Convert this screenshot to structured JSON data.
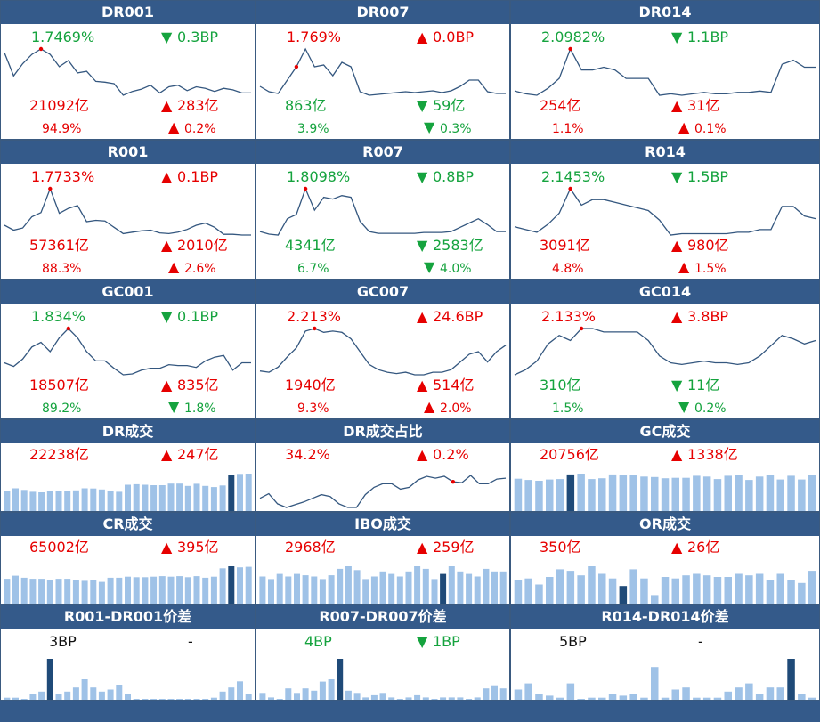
{
  "colors": {
    "header_bg": "#345a8a",
    "up": "#e60000",
    "down": "#15a33e",
    "bar": "#9fc2e7",
    "bar_highlight": "#1f4a78",
    "line": "#34577f",
    "marker": "#e60000"
  },
  "rows": [
    {
      "type": "rate",
      "panels": [
        {
          "title": "DR001",
          "rate": "1.7469%",
          "rate_color": "green",
          "change": {
            "dir": "down",
            "value": "0.3BP"
          },
          "volume": "21092亿",
          "vol_color": "red",
          "vol_change": {
            "dir": "up",
            "value": "283亿"
          },
          "share": "94.9%",
          "share_color": "red",
          "share_change": {
            "dir": "up",
            "value": "0.2%"
          },
          "chart_data": {
            "type": "line",
            "values": [
              2.0,
              1.7,
              1.86,
              1.98,
              2.05,
              1.98,
              1.82,
              1.9,
              1.74,
              1.76,
              1.63,
              1.62,
              1.6,
              1.45,
              1.5,
              1.53,
              1.58,
              1.48,
              1.56,
              1.58,
              1.51,
              1.56,
              1.54,
              1.5,
              1.54,
              1.52,
              1.48,
              1.48
            ],
            "highlight_index": 4
          }
        },
        {
          "title": "DR007",
          "rate": "1.769%",
          "rate_color": "red",
          "change": {
            "dir": "up",
            "value": "0.0BP"
          },
          "volume": "863亿",
          "vol_color": "green",
          "vol_change": {
            "dir": "down",
            "value": "59亿"
          },
          "share": "3.9%",
          "share_color": "green",
          "share_change": {
            "dir": "down",
            "value": "0.3%"
          },
          "chart_data": {
            "type": "line",
            "values": [
              1.78,
              1.72,
              1.7,
              1.85,
              2.0,
              2.2,
              2.0,
              2.02,
              1.9,
              2.05,
              2.0,
              1.72,
              1.68,
              1.69,
              1.7,
              1.71,
              1.72,
              1.71,
              1.72,
              1.73,
              1.71,
              1.73,
              1.78,
              1.85,
              1.85,
              1.72,
              1.7,
              1.7
            ],
            "highlight_index": 4
          }
        },
        {
          "title": "DR014",
          "rate": "2.0982%",
          "rate_color": "green",
          "change": {
            "dir": "down",
            "value": "1.1BP"
          },
          "volume": "254亿",
          "vol_color": "red",
          "vol_change": {
            "dir": "up",
            "value": "31亿"
          },
          "share": "1.1%",
          "share_color": "red",
          "share_change": {
            "dir": "up",
            "value": "0.1%"
          },
          "chart_data": {
            "type": "line",
            "values": [
              2.03,
              2.01,
              2.0,
              2.05,
              2.12,
              2.33,
              2.18,
              2.18,
              2.2,
              2.18,
              2.12,
              2.12,
              2.12,
              2.0,
              2.01,
              2.0,
              2.01,
              2.02,
              2.01,
              2.01,
              2.02,
              2.02,
              2.03,
              2.02,
              2.22,
              2.25,
              2.2,
              2.2
            ],
            "highlight_index": 5
          }
        }
      ]
    },
    {
      "type": "rate",
      "panels": [
        {
          "title": "R001",
          "rate": "1.7733%",
          "rate_color": "red",
          "change": {
            "dir": "up",
            "value": "0.1BP"
          },
          "volume": "57361亿",
          "vol_color": "red",
          "vol_change": {
            "dir": "up",
            "value": "2010亿"
          },
          "share": "88.3%",
          "share_color": "red",
          "share_change": {
            "dir": "up",
            "value": "2.6%"
          },
          "chart_data": {
            "type": "line",
            "values": [
              1.7,
              1.63,
              1.66,
              1.82,
              1.88,
              2.22,
              1.87,
              1.94,
              1.98,
              1.75,
              1.77,
              1.76,
              1.67,
              1.58,
              1.6,
              1.62,
              1.63,
              1.59,
              1.58,
              1.6,
              1.64,
              1.7,
              1.73,
              1.67,
              1.57,
              1.57,
              1.56,
              1.56
            ],
            "highlight_index": 5
          }
        },
        {
          "title": "R007",
          "rate": "1.8098%",
          "rate_color": "green",
          "change": {
            "dir": "down",
            "value": "0.8BP"
          },
          "volume": "4341亿",
          "vol_color": "green",
          "vol_change": {
            "dir": "down",
            "value": "2583亿"
          },
          "share": "6.7%",
          "share_color": "green",
          "share_change": {
            "dir": "down",
            "value": "4.0%"
          },
          "chart_data": {
            "type": "line",
            "values": [
              1.8,
              1.77,
              1.76,
              1.95,
              2.0,
              2.3,
              2.05,
              2.2,
              2.18,
              2.22,
              2.2,
              1.92,
              1.8,
              1.78,
              1.78,
              1.78,
              1.78,
              1.78,
              1.79,
              1.79,
              1.79,
              1.8,
              1.85,
              1.9,
              1.95,
              1.88,
              1.8,
              1.8
            ],
            "highlight_index": 5
          }
        },
        {
          "title": "R014",
          "rate": "2.1453%",
          "rate_color": "green",
          "change": {
            "dir": "down",
            "value": "1.5BP"
          },
          "volume": "3091亿",
          "vol_color": "red",
          "vol_change": {
            "dir": "up",
            "value": "980亿"
          },
          "share": "4.8%",
          "share_color": "red",
          "share_change": {
            "dir": "up",
            "value": "1.5%"
          },
          "chart_data": {
            "type": "line",
            "values": [
              2.1,
              2.08,
              2.06,
              2.12,
              2.2,
              2.38,
              2.26,
              2.3,
              2.3,
              2.28,
              2.26,
              2.24,
              2.22,
              2.15,
              2.04,
              2.05,
              2.05,
              2.05,
              2.05,
              2.05,
              2.06,
              2.06,
              2.08,
              2.08,
              2.25,
              2.25,
              2.18,
              2.16
            ],
            "highlight_index": 5
          }
        }
      ]
    },
    {
      "type": "rate",
      "panels": [
        {
          "title": "GC001",
          "rate": "1.834%",
          "rate_color": "green",
          "change": {
            "dir": "down",
            "value": "0.1BP"
          },
          "volume": "18507亿",
          "vol_color": "red",
          "vol_change": {
            "dir": "up",
            "value": "835亿"
          },
          "share": "89.2%",
          "share_color": "green",
          "share_change": {
            "dir": "down",
            "value": "1.8%"
          },
          "chart_data": {
            "type": "line",
            "values": [
              1.78,
              1.74,
              1.82,
              1.95,
              2.0,
              1.9,
              2.05,
              2.15,
              2.05,
              1.9,
              1.8,
              1.8,
              1.72,
              1.65,
              1.66,
              1.7,
              1.72,
              1.72,
              1.76,
              1.75,
              1.75,
              1.73,
              1.8,
              1.84,
              1.86,
              1.7,
              1.78,
              1.78
            ],
            "highlight_index": 7
          }
        },
        {
          "title": "GC007",
          "rate": "2.213%",
          "rate_color": "red",
          "change": {
            "dir": "up",
            "value": "24.6BP"
          },
          "volume": "1940亿",
          "vol_color": "red",
          "vol_change": {
            "dir": "up",
            "value": "514亿"
          },
          "share": "9.3%",
          "share_color": "red",
          "share_change": {
            "dir": "up",
            "value": "2.0%"
          },
          "chart_data": {
            "type": "line",
            "values": [
              1.85,
              1.84,
              1.88,
              1.96,
              2.03,
              2.16,
              2.18,
              2.15,
              2.16,
              2.15,
              2.1,
              2.0,
              1.9,
              1.86,
              1.84,
              1.83,
              1.84,
              1.82,
              1.82,
              1.84,
              1.84,
              1.86,
              1.92,
              1.98,
              2.0,
              1.92,
              2.0,
              2.05
            ],
            "highlight_index": 6
          }
        },
        {
          "title": "GC014",
          "rate": "2.133%",
          "rate_color": "red",
          "change": {
            "dir": "up",
            "value": "3.8BP"
          },
          "volume": "310亿",
          "vol_color": "green",
          "vol_change": {
            "dir": "down",
            "value": "11亿"
          },
          "share": "1.5%",
          "share_color": "green",
          "share_change": {
            "dir": "down",
            "value": "0.2%"
          },
          "chart_data": {
            "type": "line",
            "values": [
              1.85,
              1.88,
              1.93,
              2.03,
              2.08,
              2.05,
              2.12,
              2.12,
              2.1,
              2.1,
              2.1,
              2.1,
              2.05,
              1.96,
              1.92,
              1.91,
              1.92,
              1.93,
              1.92,
              1.92,
              1.91,
              1.92,
              1.96,
              2.02,
              2.08,
              2.06,
              2.03,
              2.05
            ],
            "highlight_index": 6
          }
        }
      ]
    },
    {
      "type": "volume",
      "panels": [
        {
          "title": "DR成交",
          "value": "22238亿",
          "value_color": "red",
          "change": {
            "dir": "up",
            "value": "247亿"
          },
          "chart_data": {
            "type": "bar",
            "values": [
              20500,
              21500,
              20800,
              20000,
              19800,
              20200,
              20400,
              20500,
              20600,
              21500,
              21400,
              21000,
              20200,
              20000,
              23000,
              23200,
              23000,
              22800,
              22800,
              23500,
              23500,
              22500,
              23400,
              22500,
              22000,
              22700,
              27200,
              27600,
              27700
            ],
            "highlight_index": 26
          }
        },
        {
          "title": "DR成交占比",
          "value": "34.2%",
          "value_color": "red",
          "change": {
            "dir": "up",
            "value": "0.2%"
          },
          "chart_data": {
            "type": "line",
            "values": [
              33.0,
              33.5,
              32.4,
              32.0,
              32.3,
              32.6,
              33.0,
              33.4,
              33.2,
              32.4,
              32.0,
              32.0,
              33.4,
              34.2,
              34.6,
              34.6,
              34.0,
              34.2,
              35.0,
              35.4,
              35.2,
              35.4,
              34.8,
              34.7,
              35.5,
              34.6,
              34.6,
              35.1,
              35.2
            ],
            "highlight_index": 22
          }
        },
        {
          "title": "GC成交",
          "value": "20756亿",
          "value_color": "red",
          "change": {
            "dir": "up",
            "value": "1338亿"
          },
          "chart_data": {
            "type": "bar",
            "values": [
              18500,
              18200,
              18000,
              18300,
              18400,
              19500,
              19700,
              18400,
              18600,
              19500,
              19400,
              19300,
              19000,
              18900,
              18600,
              18700,
              18700,
              19200,
              19000,
              18400,
              19200,
              19300,
              18200,
              19000,
              19300,
              18300,
              19200,
              18300,
              19400
            ],
            "highlight_index": 5
          }
        }
      ]
    },
    {
      "type": "volume",
      "panels": [
        {
          "title": "CR成交",
          "value": "65002亿",
          "value_color": "red",
          "change": {
            "dir": "up",
            "value": "395亿"
          },
          "chart_data": {
            "type": "bar",
            "values": [
              55000,
              58000,
              56000,
              55000,
              55000,
              54000,
              55000,
              55000,
              54000,
              53000,
              54000,
              52000,
              56000,
              56000,
              57000,
              56500,
              56500,
              57000,
              57500,
              57000,
              57500,
              56500,
              57500,
              56000,
              57000,
              65000,
              67000,
              66000,
              66500
            ],
            "highlight_index": 26
          }
        },
        {
          "title": "IBO成交",
          "value": "2968亿",
          "value_color": "red",
          "change": {
            "dir": "up",
            "value": "259亿"
          },
          "chart_data": {
            "type": "bar",
            "values": [
              2500,
              2400,
              2600,
              2500,
              2600,
              2550,
              2500,
              2400,
              2550,
              2800,
              2900,
              2750,
              2400,
              2500,
              2700,
              2600,
              2500,
              2700,
              2900,
              2800,
              2400,
              2600,
              2900,
              2700,
              2600,
              2500,
              2800,
              2700,
              2700
            ],
            "highlight_index": 21
          }
        },
        {
          "title": "OR成交",
          "value": "350亿",
          "value_color": "red",
          "change": {
            "dir": "up",
            "value": "26亿"
          },
          "chart_data": {
            "type": "bar",
            "values": [
              240,
              250,
              210,
              260,
              310,
              300,
              270,
              330,
              280,
              250,
              200,
              310,
              250,
              140,
              260,
              250,
              270,
              280,
              270,
              260,
              260,
              280,
              270,
              280,
              240,
              280,
              240,
              220,
              300
            ],
            "highlight_index": 10
          }
        }
      ]
    },
    {
      "type": "spread",
      "panels": [
        {
          "title": "R001-DR001价差",
          "value": "3BP",
          "value_color": "black",
          "change": {
            "dir": "none",
            "value": "-"
          },
          "chart_data": {
            "type": "bar",
            "values": [
              1,
              1,
              0,
              3,
              4,
              20,
              3,
              4,
              6,
              10,
              6,
              4,
              5,
              7,
              3,
              0,
              0,
              0,
              0,
              0,
              0,
              0,
              0,
              0,
              1,
              4,
              6,
              9,
              3
            ],
            "highlight_index": 5
          }
        },
        {
          "title": "R007-DR007价差",
          "value": "4BP",
          "value_color": "green",
          "change": {
            "dir": "down",
            "value": "1BP"
          },
          "chart_data": {
            "type": "bar",
            "values": [
              3,
              1,
              0,
              5,
              3,
              5,
              4,
              8,
              9,
              18,
              4,
              3,
              1,
              2,
              3,
              1,
              0,
              1,
              2,
              1,
              0,
              1,
              1,
              1,
              0,
              1,
              5,
              6,
              5
            ],
            "highlight_index": 9
          }
        },
        {
          "title": "R014-DR014价差",
          "value": "5BP",
          "value_color": "black",
          "change": {
            "dir": "none",
            "value": "-"
          },
          "chart_data": {
            "type": "bar",
            "values": [
              5,
              8,
              3,
              2,
              1,
              8,
              0,
              1,
              1,
              3,
              2,
              3,
              1,
              16,
              1,
              5,
              6,
              1,
              1,
              1,
              4,
              6,
              8,
              3,
              6,
              6,
              20,
              3,
              1
            ],
            "highlight_index": 26
          }
        }
      ]
    }
  ]
}
